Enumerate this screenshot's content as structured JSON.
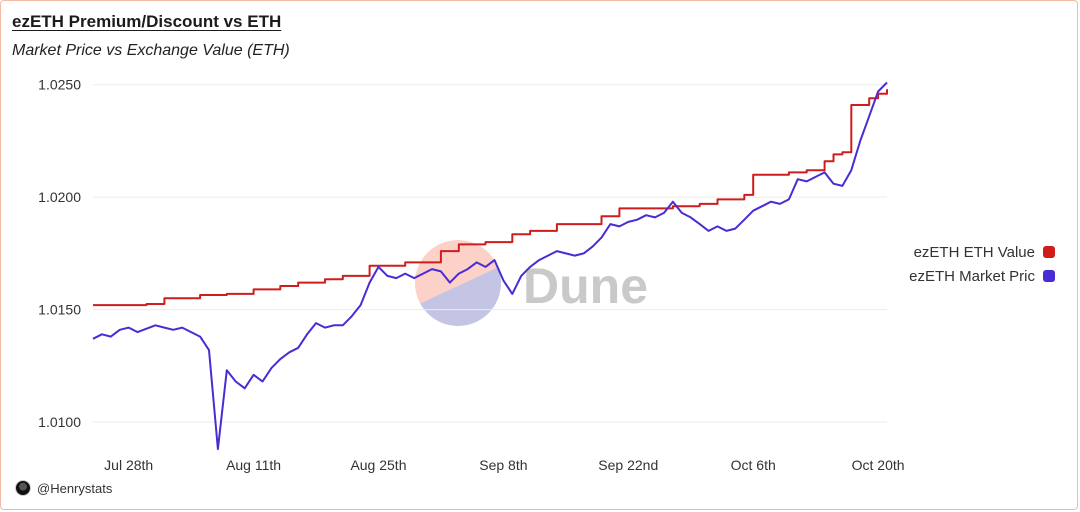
{
  "title": "ezETH Premium/Discount vs ETH",
  "subtitle": "Market Price vs Exchange Value (ETH)",
  "watermark": "Dune",
  "credit": "@Henrystats",
  "colors": {
    "eth_value": "#cf1d1d",
    "market_price": "#4a2bd4",
    "grid": "#ececec",
    "axis_text": "#333333",
    "border": "#f2b9a8"
  },
  "chart_data": {
    "type": "line",
    "title": "ezETH Premium/Discount vs ETH",
    "subtitle": "Market Price vs Exchange Value (ETH)",
    "xlabel": "",
    "ylabel": "",
    "x_range": [
      "2023-07-24",
      "2023-10-21"
    ],
    "ylim": [
      1.0088,
      1.0257
    ],
    "y_ticks": [
      1.025,
      1.02,
      1.015,
      1.01
    ],
    "y_tick_labels": [
      "1.0250",
      "1.0200",
      "1.0150",
      "1.0100"
    ],
    "x_ticks": [
      "2023-07-28",
      "2023-08-11",
      "2023-08-25",
      "2023-09-08",
      "2023-09-22",
      "2023-10-06",
      "2023-10-20"
    ],
    "x_tick_labels": [
      "Jul 28th",
      "Aug 11th",
      "Aug 25th",
      "Sep 8th",
      "Sep 22nd",
      "Oct 6th",
      "Oct 20th"
    ],
    "grid": true,
    "legend_position": "right",
    "series": [
      {
        "name": "ezETH ETH Value",
        "color": "#cf1d1d",
        "step": true,
        "points": [
          [
            "2023-07-24",
            1.0152
          ],
          [
            "2023-07-30",
            1.01525
          ],
          [
            "2023-08-01",
            1.0155
          ],
          [
            "2023-08-05",
            1.01565
          ],
          [
            "2023-08-08",
            1.0157
          ],
          [
            "2023-08-11",
            1.0159
          ],
          [
            "2023-08-14",
            1.01605
          ],
          [
            "2023-08-16",
            1.0162
          ],
          [
            "2023-08-19",
            1.01635
          ],
          [
            "2023-08-21",
            1.0165
          ],
          [
            "2023-08-24",
            1.01695
          ],
          [
            "2023-08-28",
            1.0171
          ],
          [
            "2023-09-01",
            1.0176
          ],
          [
            "2023-09-03",
            1.0179
          ],
          [
            "2023-09-06",
            1.018
          ],
          [
            "2023-09-09",
            1.01835
          ],
          [
            "2023-09-11",
            1.0185
          ],
          [
            "2023-09-14",
            1.0188
          ],
          [
            "2023-09-19",
            1.01915
          ],
          [
            "2023-09-21",
            1.0195
          ],
          [
            "2023-09-27",
            1.0196
          ],
          [
            "2023-09-30",
            1.0197
          ],
          [
            "2023-10-02",
            1.0199
          ],
          [
            "2023-10-05",
            1.0201
          ],
          [
            "2023-10-06",
            1.021
          ],
          [
            "2023-10-10",
            1.0211
          ],
          [
            "2023-10-12",
            1.0212
          ],
          [
            "2023-10-14",
            1.0216
          ],
          [
            "2023-10-15",
            1.0219
          ],
          [
            "2023-10-16",
            1.022
          ],
          [
            "2023-10-17",
            1.0241
          ],
          [
            "2023-10-19",
            1.0244
          ],
          [
            "2023-10-20",
            1.0246
          ],
          [
            "2023-10-21",
            1.0248
          ]
        ]
      },
      {
        "name": "ezETH Market Pric",
        "color": "#4a2bd4",
        "step": false,
        "points": [
          [
            "2023-07-24",
            1.0137
          ],
          [
            "2023-07-25",
            1.0139
          ],
          [
            "2023-07-26",
            1.0138
          ],
          [
            "2023-07-27",
            1.0141
          ],
          [
            "2023-07-28",
            1.0142
          ],
          [
            "2023-07-29",
            1.014
          ],
          [
            "2023-07-31",
            1.0143
          ],
          [
            "2023-08-01",
            1.0142
          ],
          [
            "2023-08-02",
            1.0141
          ],
          [
            "2023-08-03",
            1.0142
          ],
          [
            "2023-08-04",
            1.014
          ],
          [
            "2023-08-05",
            1.0138
          ],
          [
            "2023-08-06",
            1.0132
          ],
          [
            "2023-08-07",
            1.0088
          ],
          [
            "2023-08-08",
            1.0123
          ],
          [
            "2023-08-09",
            1.0118
          ],
          [
            "2023-08-10",
            1.0115
          ],
          [
            "2023-08-11",
            1.0121
          ],
          [
            "2023-08-12",
            1.0118
          ],
          [
            "2023-08-13",
            1.0124
          ],
          [
            "2023-08-14",
            1.0128
          ],
          [
            "2023-08-15",
            1.0131
          ],
          [
            "2023-08-16",
            1.0133
          ],
          [
            "2023-08-17",
            1.0139
          ],
          [
            "2023-08-18",
            1.0144
          ],
          [
            "2023-08-19",
            1.0142
          ],
          [
            "2023-08-20",
            1.0143
          ],
          [
            "2023-08-21",
            1.0143
          ],
          [
            "2023-08-22",
            1.0147
          ],
          [
            "2023-08-23",
            1.0152
          ],
          [
            "2023-08-24",
            1.0162
          ],
          [
            "2023-08-25",
            1.0169
          ],
          [
            "2023-08-26",
            1.0165
          ],
          [
            "2023-08-27",
            1.0164
          ],
          [
            "2023-08-28",
            1.0166
          ],
          [
            "2023-08-29",
            1.0164
          ],
          [
            "2023-08-30",
            1.0166
          ],
          [
            "2023-08-31",
            1.0168
          ],
          [
            "2023-09-01",
            1.0167
          ],
          [
            "2023-09-02",
            1.0162
          ],
          [
            "2023-09-03",
            1.0166
          ],
          [
            "2023-09-04",
            1.0168
          ],
          [
            "2023-09-05",
            1.0171
          ],
          [
            "2023-09-06",
            1.0169
          ],
          [
            "2023-09-07",
            1.0172
          ],
          [
            "2023-09-08",
            1.0163
          ],
          [
            "2023-09-09",
            1.0157
          ],
          [
            "2023-09-10",
            1.0165
          ],
          [
            "2023-09-11",
            1.0169
          ],
          [
            "2023-09-12",
            1.0172
          ],
          [
            "2023-09-13",
            1.0174
          ],
          [
            "2023-09-14",
            1.0176
          ],
          [
            "2023-09-15",
            1.0175
          ],
          [
            "2023-09-16",
            1.0174
          ],
          [
            "2023-09-17",
            1.0175
          ],
          [
            "2023-09-18",
            1.0178
          ],
          [
            "2023-09-19",
            1.0182
          ],
          [
            "2023-09-20",
            1.0188
          ],
          [
            "2023-09-21",
            1.0187
          ],
          [
            "2023-09-22",
            1.0189
          ],
          [
            "2023-09-23",
            1.019
          ],
          [
            "2023-09-24",
            1.0192
          ],
          [
            "2023-09-25",
            1.0191
          ],
          [
            "2023-09-26",
            1.0193
          ],
          [
            "2023-09-27",
            1.0198
          ],
          [
            "2023-09-28",
            1.0193
          ],
          [
            "2023-09-29",
            1.0191
          ],
          [
            "2023-09-30",
            1.0188
          ],
          [
            "2023-10-01",
            1.0185
          ],
          [
            "2023-10-02",
            1.0187
          ],
          [
            "2023-10-03",
            1.0185
          ],
          [
            "2023-10-04",
            1.0186
          ],
          [
            "2023-10-05",
            1.019
          ],
          [
            "2023-10-06",
            1.0194
          ],
          [
            "2023-10-07",
            1.0196
          ],
          [
            "2023-10-08",
            1.0198
          ],
          [
            "2023-10-09",
            1.0197
          ],
          [
            "2023-10-10",
            1.0199
          ],
          [
            "2023-10-11",
            1.0208
          ],
          [
            "2023-10-12",
            1.0207
          ],
          [
            "2023-10-13",
            1.0209
          ],
          [
            "2023-10-14",
            1.0211
          ],
          [
            "2023-10-15",
            1.0206
          ],
          [
            "2023-10-16",
            1.0205
          ],
          [
            "2023-10-17",
            1.0212
          ],
          [
            "2023-10-18",
            1.0225
          ],
          [
            "2023-10-19",
            1.0236
          ],
          [
            "2023-10-20",
            1.0247
          ],
          [
            "2023-10-21",
            1.0251
          ]
        ]
      }
    ]
  }
}
